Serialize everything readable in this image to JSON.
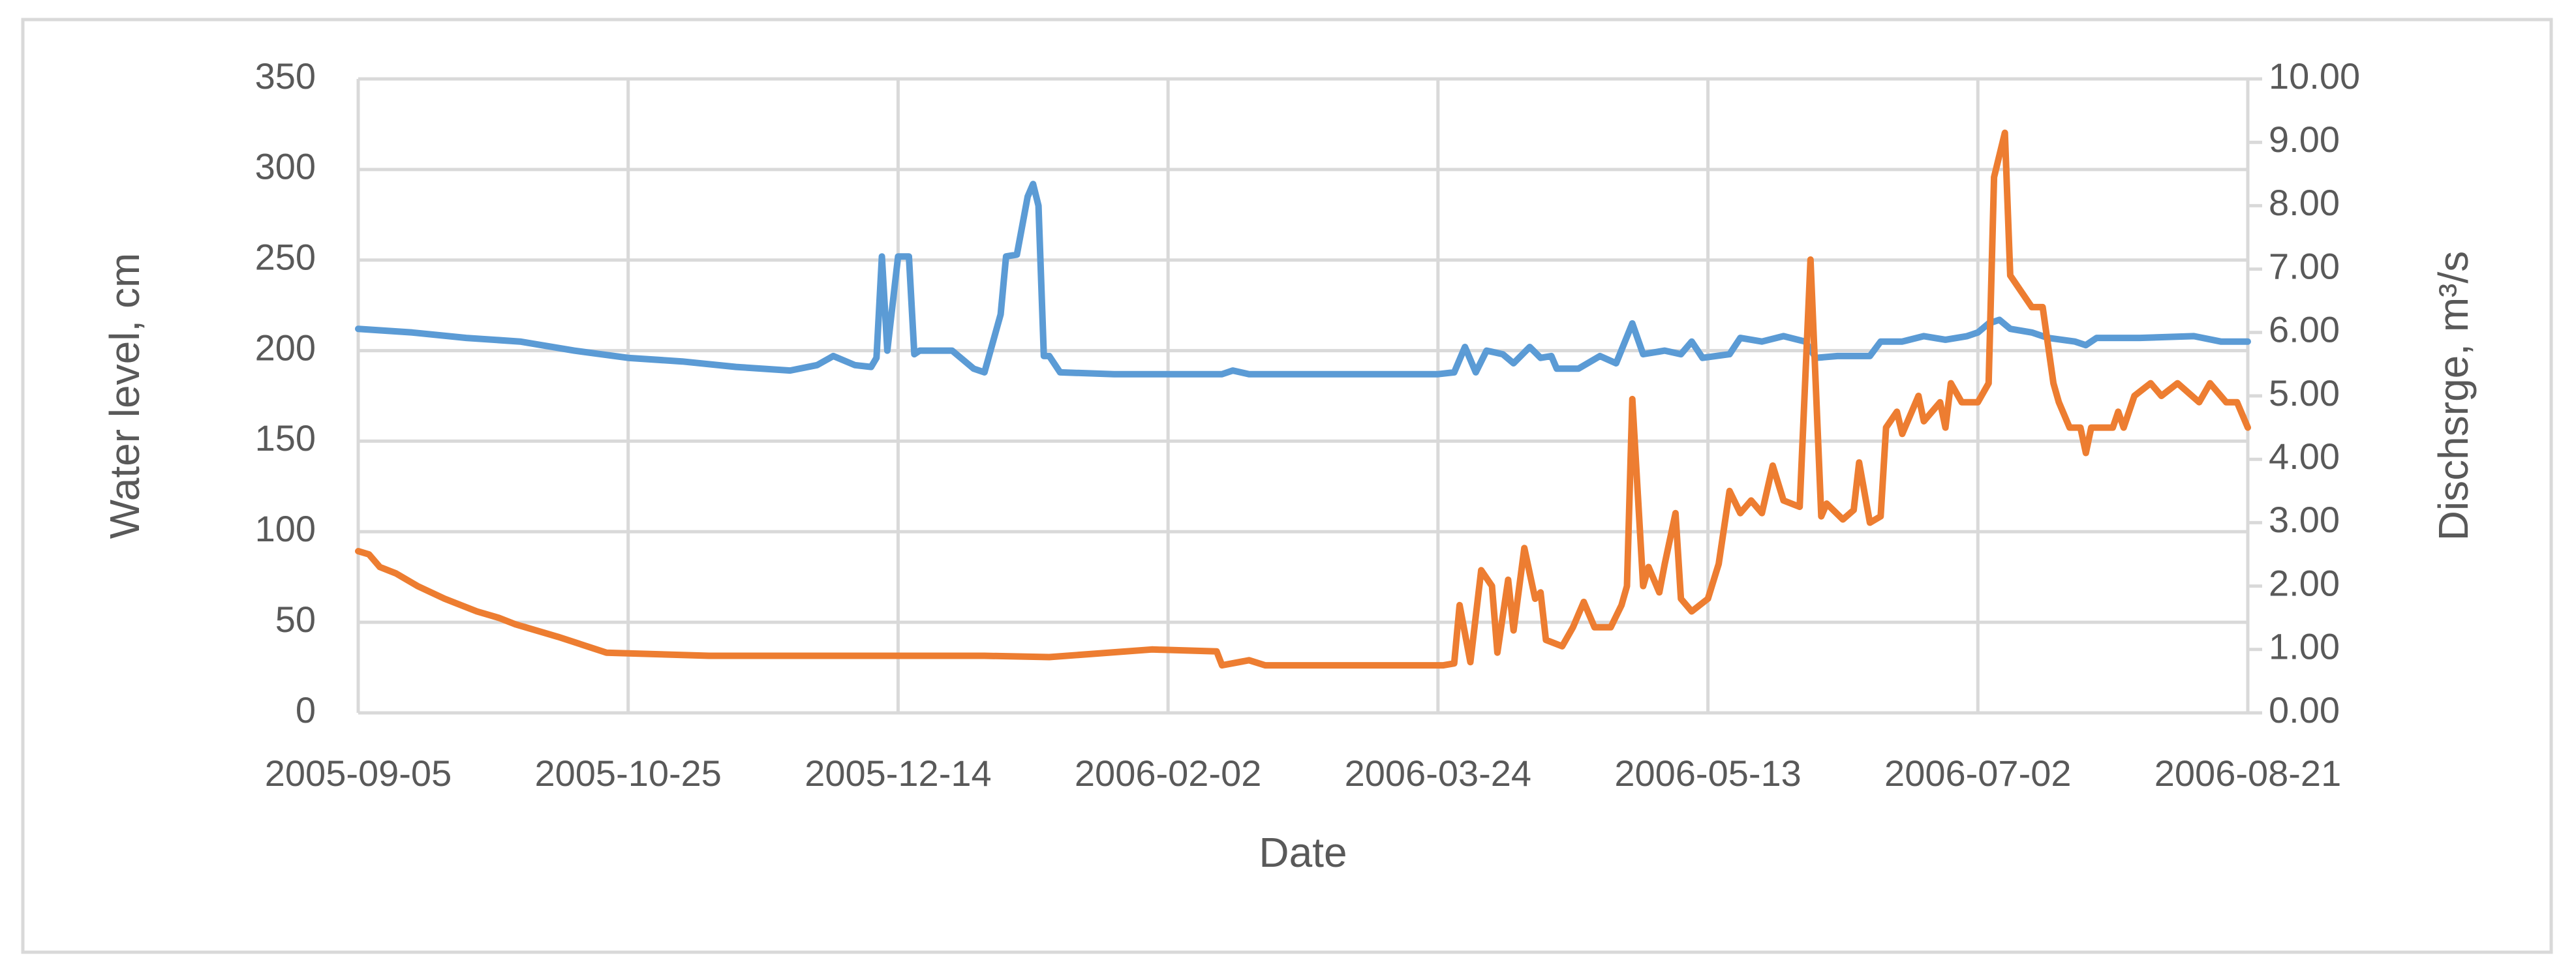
{
  "chart_data": {
    "type": "line",
    "xlabel": "Date",
    "ylabel": "Water level, cm",
    "y2label": "Dischsrge, m³/s",
    "xlim": [
      "2005-09-05",
      "2006-08-21"
    ],
    "xticks": [
      "2005-09-05",
      "2005-10-25",
      "2005-12-14",
      "2006-02-02",
      "2006-03-24",
      "2006-05-13",
      "2006-07-02",
      "2006-08-21"
    ],
    "ylim": [
      0,
      350
    ],
    "yticks": [
      0,
      50,
      100,
      150,
      200,
      250,
      300,
      350
    ],
    "y2lim": [
      0,
      10
    ],
    "y2ticks": [
      {
        "value": 0,
        "label": "0.00"
      },
      {
        "value": 1,
        "label": "1.00"
      },
      {
        "value": 2,
        "label": "2.00"
      },
      {
        "value": 3,
        "label": "3.00"
      },
      {
        "value": 4,
        "label": "4.00"
      },
      {
        "value": 5,
        "label": "5.00"
      },
      {
        "value": 6,
        "label": "6.00"
      },
      {
        "value": 7,
        "label": "7.00"
      },
      {
        "value": 8,
        "label": "8.00"
      },
      {
        "value": 9,
        "label": "9.00"
      },
      {
        "value": 10,
        "label": "10.00"
      }
    ],
    "grid": true,
    "series": [
      {
        "color": "#5b9bd5",
        "axis": "y",
        "x": [
          "2005-09-05",
          "2005-09-15",
          "2005-09-25",
          "2005-10-05",
          "2005-10-15",
          "2005-10-25",
          "2005-11-04",
          "2005-11-14",
          "2005-11-24",
          "2005-11-29",
          "2005-12-02",
          "2005-12-06",
          "2005-12-09",
          "2005-12-10",
          "2005-12-11",
          "2005-12-12",
          "2005-12-14",
          "2005-12-16",
          "2005-12-17",
          "2005-12-18",
          "2005-12-24",
          "2005-12-28",
          "2005-12-30",
          "2006-01-02",
          "2006-01-03",
          "2006-01-05",
          "2006-01-07",
          "2006-01-08",
          "2006-01-09",
          "2006-01-10",
          "2006-01-11",
          "2006-01-13",
          "2006-01-23",
          "2006-02-12",
          "2006-02-14",
          "2006-02-17",
          "2006-03-04",
          "2006-03-24",
          "2006-03-27",
          "2006-03-29",
          "2006-03-31",
          "2006-04-02",
          "2006-04-05",
          "2006-04-07",
          "2006-04-10",
          "2006-04-12",
          "2006-04-14",
          "2006-04-15",
          "2006-04-19",
          "2006-04-23",
          "2006-04-26",
          "2006-04-29",
          "2006-05-01",
          "2006-05-05",
          "2006-05-08",
          "2006-05-10",
          "2006-05-12",
          "2006-05-17",
          "2006-05-19",
          "2006-05-23",
          "2006-05-27",
          "2006-05-31",
          "2006-06-02",
          "2006-06-06",
          "2006-06-12",
          "2006-06-14",
          "2006-06-18",
          "2006-06-22",
          "2006-06-26",
          "2006-06-30",
          "2006-07-02",
          "2006-07-04",
          "2006-07-06",
          "2006-07-08",
          "2006-07-12",
          "2006-07-15",
          "2006-07-20",
          "2006-07-22",
          "2006-07-24",
          "2006-08-01",
          "2006-08-11",
          "2006-08-16",
          "2006-08-21"
        ],
        "values": [
          212,
          210,
          207,
          205,
          200,
          196,
          194,
          191,
          189,
          192,
          197,
          192,
          191,
          196,
          252,
          200,
          252,
          252,
          198,
          200,
          200,
          190,
          188,
          220,
          252,
          253,
          285,
          292,
          280,
          197,
          197,
          188,
          187,
          187,
          189,
          187,
          187,
          187,
          188,
          202,
          188,
          200,
          198,
          193,
          202,
          196,
          197,
          190,
          190,
          197,
          193,
          215,
          198,
          200,
          198,
          205,
          196,
          198,
          207,
          205,
          208,
          205,
          196,
          197,
          197,
          205,
          205,
          208,
          206,
          208,
          210,
          215,
          217,
          212,
          210,
          207,
          205,
          203,
          207,
          207,
          208,
          205,
          205
        ]
      },
      {
        "color": "#ed7d31",
        "axis": "y2",
        "x": [
          "2005-09-05",
          "2005-09-07",
          "2005-09-09",
          "2005-09-12",
          "2005-09-16",
          "2005-09-21",
          "2005-09-27",
          "2005-10-01",
          "2005-10-04",
          "2005-10-12",
          "2005-10-21",
          "2005-11-09",
          "2005-12-30",
          "2006-01-11",
          "2006-01-30",
          "2006-02-11",
          "2006-02-12",
          "2006-02-17",
          "2006-02-20",
          "2006-03-25",
          "2006-03-27",
          "2006-03-28",
          "2006-03-30",
          "2006-04-01",
          "2006-04-03",
          "2006-04-04",
          "2006-04-06",
          "2006-04-07",
          "2006-04-09",
          "2006-04-11",
          "2006-04-12",
          "2006-04-13",
          "2006-04-16",
          "2006-04-18",
          "2006-04-20",
          "2006-04-22",
          "2006-04-25",
          "2006-04-27",
          "2006-04-28",
          "2006-04-29",
          "2006-05-01",
          "2006-05-02",
          "2006-05-04",
          "2006-05-05",
          "2006-05-07",
          "2006-05-08",
          "2006-05-10",
          "2006-05-13",
          "2006-05-15",
          "2006-05-17",
          "2006-05-19",
          "2006-05-21",
          "2006-05-23",
          "2006-05-25",
          "2006-05-27",
          "2006-05-30",
          "2006-06-01",
          "2006-06-03",
          "2006-06-04",
          "2006-06-07",
          "2006-06-09",
          "2006-06-10",
          "2006-06-12",
          "2006-06-14",
          "2006-06-15",
          "2006-06-17",
          "2006-06-18",
          "2006-06-21",
          "2006-06-22",
          "2006-06-25",
          "2006-06-26",
          "2006-06-27",
          "2006-06-29",
          "2006-07-02",
          "2006-07-04",
          "2006-07-05",
          "2006-07-07",
          "2006-07-08",
          "2006-07-12",
          "2006-07-14",
          "2006-07-16",
          "2006-07-17",
          "2006-07-19",
          "2006-07-21",
          "2006-07-22",
          "2006-07-23",
          "2006-07-27",
          "2006-07-28",
          "2006-07-29",
          "2006-07-31",
          "2006-08-03",
          "2006-08-05",
          "2006-08-08",
          "2006-08-12",
          "2006-08-14",
          "2006-08-17",
          "2006-08-19",
          "2006-08-21"
        ],
        "values": [
          2.55,
          2.5,
          2.3,
          2.2,
          2.0,
          1.8,
          1.6,
          1.5,
          1.4,
          1.2,
          0.95,
          0.9,
          0.9,
          0.88,
          1.0,
          0.97,
          0.75,
          0.83,
          0.75,
          0.75,
          0.78,
          1.7,
          0.8,
          2.25,
          2.0,
          0.95,
          2.1,
          1.3,
          2.6,
          1.8,
          1.9,
          1.15,
          1.05,
          1.35,
          1.75,
          1.35,
          1.35,
          1.7,
          2.0,
          4.95,
          2.0,
          2.3,
          1.9,
          2.35,
          3.15,
          1.8,
          1.6,
          1.8,
          2.35,
          3.5,
          3.15,
          3.35,
          3.15,
          3.9,
          3.35,
          3.25,
          7.15,
          3.1,
          3.3,
          3.05,
          3.2,
          3.95,
          3.0,
          3.1,
          4.5,
          4.75,
          4.4,
          5.0,
          4.6,
          4.9,
          4.5,
          5.2,
          4.9,
          4.9,
          5.2,
          8.45,
          9.15,
          6.9,
          6.4,
          6.4,
          5.2,
          4.9,
          4.5,
          4.5,
          4.1,
          4.5,
          4.5,
          4.75,
          4.5,
          5.0,
          5.2,
          5.0,
          5.2,
          4.9,
          5.2,
          4.9,
          4.9,
          4.5
        ]
      }
    ]
  }
}
